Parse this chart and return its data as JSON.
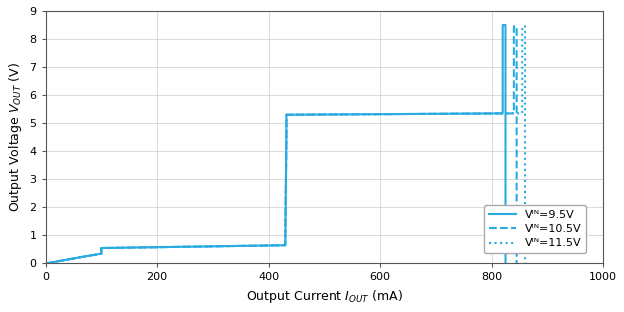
{
  "xlim": [
    0,
    1000
  ],
  "ylim": [
    0,
    9.0
  ],
  "xticks": [
    0,
    200,
    400,
    600,
    800,
    1000
  ],
  "yticks": [
    0,
    1.0,
    2.0,
    3.0,
    4.0,
    5.0,
    6.0,
    7.0,
    8.0,
    9.0
  ],
  "line_color": "#29abe2",
  "legend_labels": [
    "Vᴵᴺ=9.5V",
    "Vᴵᴺ=10.5V",
    "Vᴵᴺ=11.5V"
  ],
  "legend_linestyles": [
    "solid",
    "dashed",
    "dotted"
  ],
  "curve_9p5_x": [
    0,
    70,
    100,
    100,
    430,
    430,
    432,
    432,
    820,
    820,
    825,
    825
  ],
  "curve_9p5_y": [
    0.0,
    0.25,
    0.35,
    0.55,
    0.65,
    0.9,
    4.7,
    5.3,
    5.35,
    8.5,
    8.5,
    0.0
  ],
  "curve_10p5_x": [
    0,
    70,
    100,
    100,
    430,
    430,
    432,
    432,
    840,
    840,
    845,
    845
  ],
  "curve_10p5_y": [
    0.0,
    0.25,
    0.35,
    0.55,
    0.65,
    0.9,
    4.7,
    5.3,
    5.35,
    8.45,
    8.45,
    0.0
  ],
  "curve_11p5_x": [
    0,
    70,
    100,
    100,
    430,
    430,
    432,
    432,
    855,
    855,
    860,
    860
  ],
  "curve_11p5_y": [
    0.0,
    0.25,
    0.35,
    0.55,
    0.65,
    0.9,
    4.7,
    5.3,
    5.35,
    8.45,
    8.45,
    0.0
  ],
  "xlabel": "Output Current $I_{OUT}$ (mA)",
  "ylabel": "Output Voltage $V_{OUT}$ (V)"
}
